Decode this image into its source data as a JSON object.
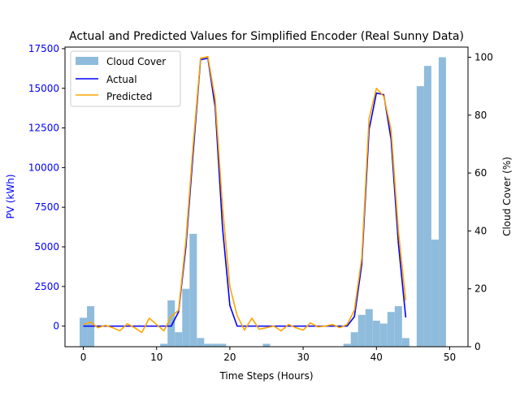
{
  "chart_data": {
    "type": "bar+line",
    "title": "Actual and Predicted Values for Simplified Encoder (Real Sunny Data)",
    "xlabel": "Time Steps (Hours)",
    "ylabel_left": "PV (kWh)",
    "ylabel_right": "Cloud Cover (%)",
    "xlim": [
      -2.5,
      52.5
    ],
    "ylim_left": [
      -1300,
      17600
    ],
    "ylim_right": [
      0,
      103.5
    ],
    "x_ticks": [
      0,
      10,
      20,
      30,
      40,
      50
    ],
    "x_tick_labels": [
      "0",
      "10",
      "20",
      "30",
      "40",
      "50"
    ],
    "y_left_ticks": [
      0,
      2500,
      5000,
      7500,
      10000,
      12500,
      15000,
      17500
    ],
    "y_left_tick_labels": [
      "0",
      "2500",
      "5000",
      "7500",
      "10000",
      "12500",
      "15000",
      "17500"
    ],
    "y_right_ticks": [
      0,
      20,
      40,
      60,
      80,
      100
    ],
    "y_right_tick_labels": [
      "0",
      "20",
      "40",
      "60",
      "80",
      "100"
    ],
    "grid": false,
    "legend_position": "top-left",
    "colors": {
      "cloud_cover": "#8fbcdc",
      "actual": "#0000ff",
      "predicted": "#ffa500",
      "left_axis_text": "#0000ff"
    },
    "cloud_cover": {
      "name": "Cloud Cover",
      "x": [
        0,
        1,
        2,
        3,
        4,
        5,
        6,
        7,
        8,
        9,
        10,
        11,
        12,
        13,
        14,
        15,
        16,
        17,
        18,
        19,
        20,
        21,
        22,
        23,
        24,
        25,
        26,
        27,
        28,
        29,
        30,
        31,
        32,
        33,
        34,
        35,
        36,
        37,
        38,
        39,
        40,
        41,
        42,
        43,
        44,
        45,
        46,
        47,
        48,
        49
      ],
      "values": [
        10,
        14,
        0,
        0,
        0,
        0,
        0,
        0,
        0,
        0,
        0,
        1,
        16,
        5,
        20,
        39,
        3,
        1,
        1,
        1,
        0,
        0,
        0,
        0,
        0,
        1,
        0,
        0,
        0,
        0,
        0,
        0,
        0,
        0,
        0,
        0,
        1,
        5,
        11,
        13,
        9,
        8,
        12,
        14,
        3,
        0,
        90,
        97,
        37,
        100
      ]
    },
    "series": [
      {
        "name": "Actual",
        "x": [
          0,
          1,
          2,
          3,
          4,
          5,
          6,
          7,
          8,
          9,
          10,
          11,
          12,
          13,
          14,
          15,
          16,
          17,
          18,
          19,
          20,
          21,
          22,
          23,
          24,
          25,
          26,
          27,
          28,
          29,
          30,
          31,
          32,
          33,
          34,
          35,
          36,
          37,
          38,
          39,
          40,
          41,
          42,
          43,
          44
        ],
        "values": [
          0,
          0,
          0,
          0,
          0,
          0,
          0,
          0,
          0,
          0,
          0,
          0,
          0,
          900,
          5000,
          11000,
          16800,
          16900,
          13800,
          6200,
          1300,
          0,
          0,
          0,
          0,
          0,
          0,
          0,
          0,
          0,
          0,
          0,
          0,
          0,
          0,
          0,
          0,
          600,
          3900,
          12400,
          14700,
          14600,
          11800,
          5200,
          550
        ]
      },
      {
        "name": "Predicted",
        "x": [
          0,
          1,
          2,
          3,
          4,
          5,
          6,
          7,
          8,
          9,
          10,
          11,
          12,
          13,
          14,
          15,
          16,
          17,
          18,
          19,
          20,
          21,
          22,
          23,
          24,
          25,
          26,
          27,
          28,
          29,
          30,
          31,
          32,
          33,
          34,
          35,
          36,
          37,
          38,
          39,
          40,
          41,
          42,
          43,
          44
        ],
        "values": [
          100,
          250,
          -100,
          50,
          -100,
          -300,
          150,
          -100,
          -400,
          500,
          100,
          -300,
          600,
          1000,
          5400,
          11500,
          16900,
          17000,
          14300,
          7500,
          2500,
          650,
          -250,
          500,
          -200,
          -100,
          0,
          -300,
          100,
          -100,
          -250,
          200,
          -50,
          0,
          100,
          -100,
          100,
          1000,
          4300,
          13100,
          15000,
          14500,
          12400,
          6000,
          1600
        ]
      }
    ]
  }
}
